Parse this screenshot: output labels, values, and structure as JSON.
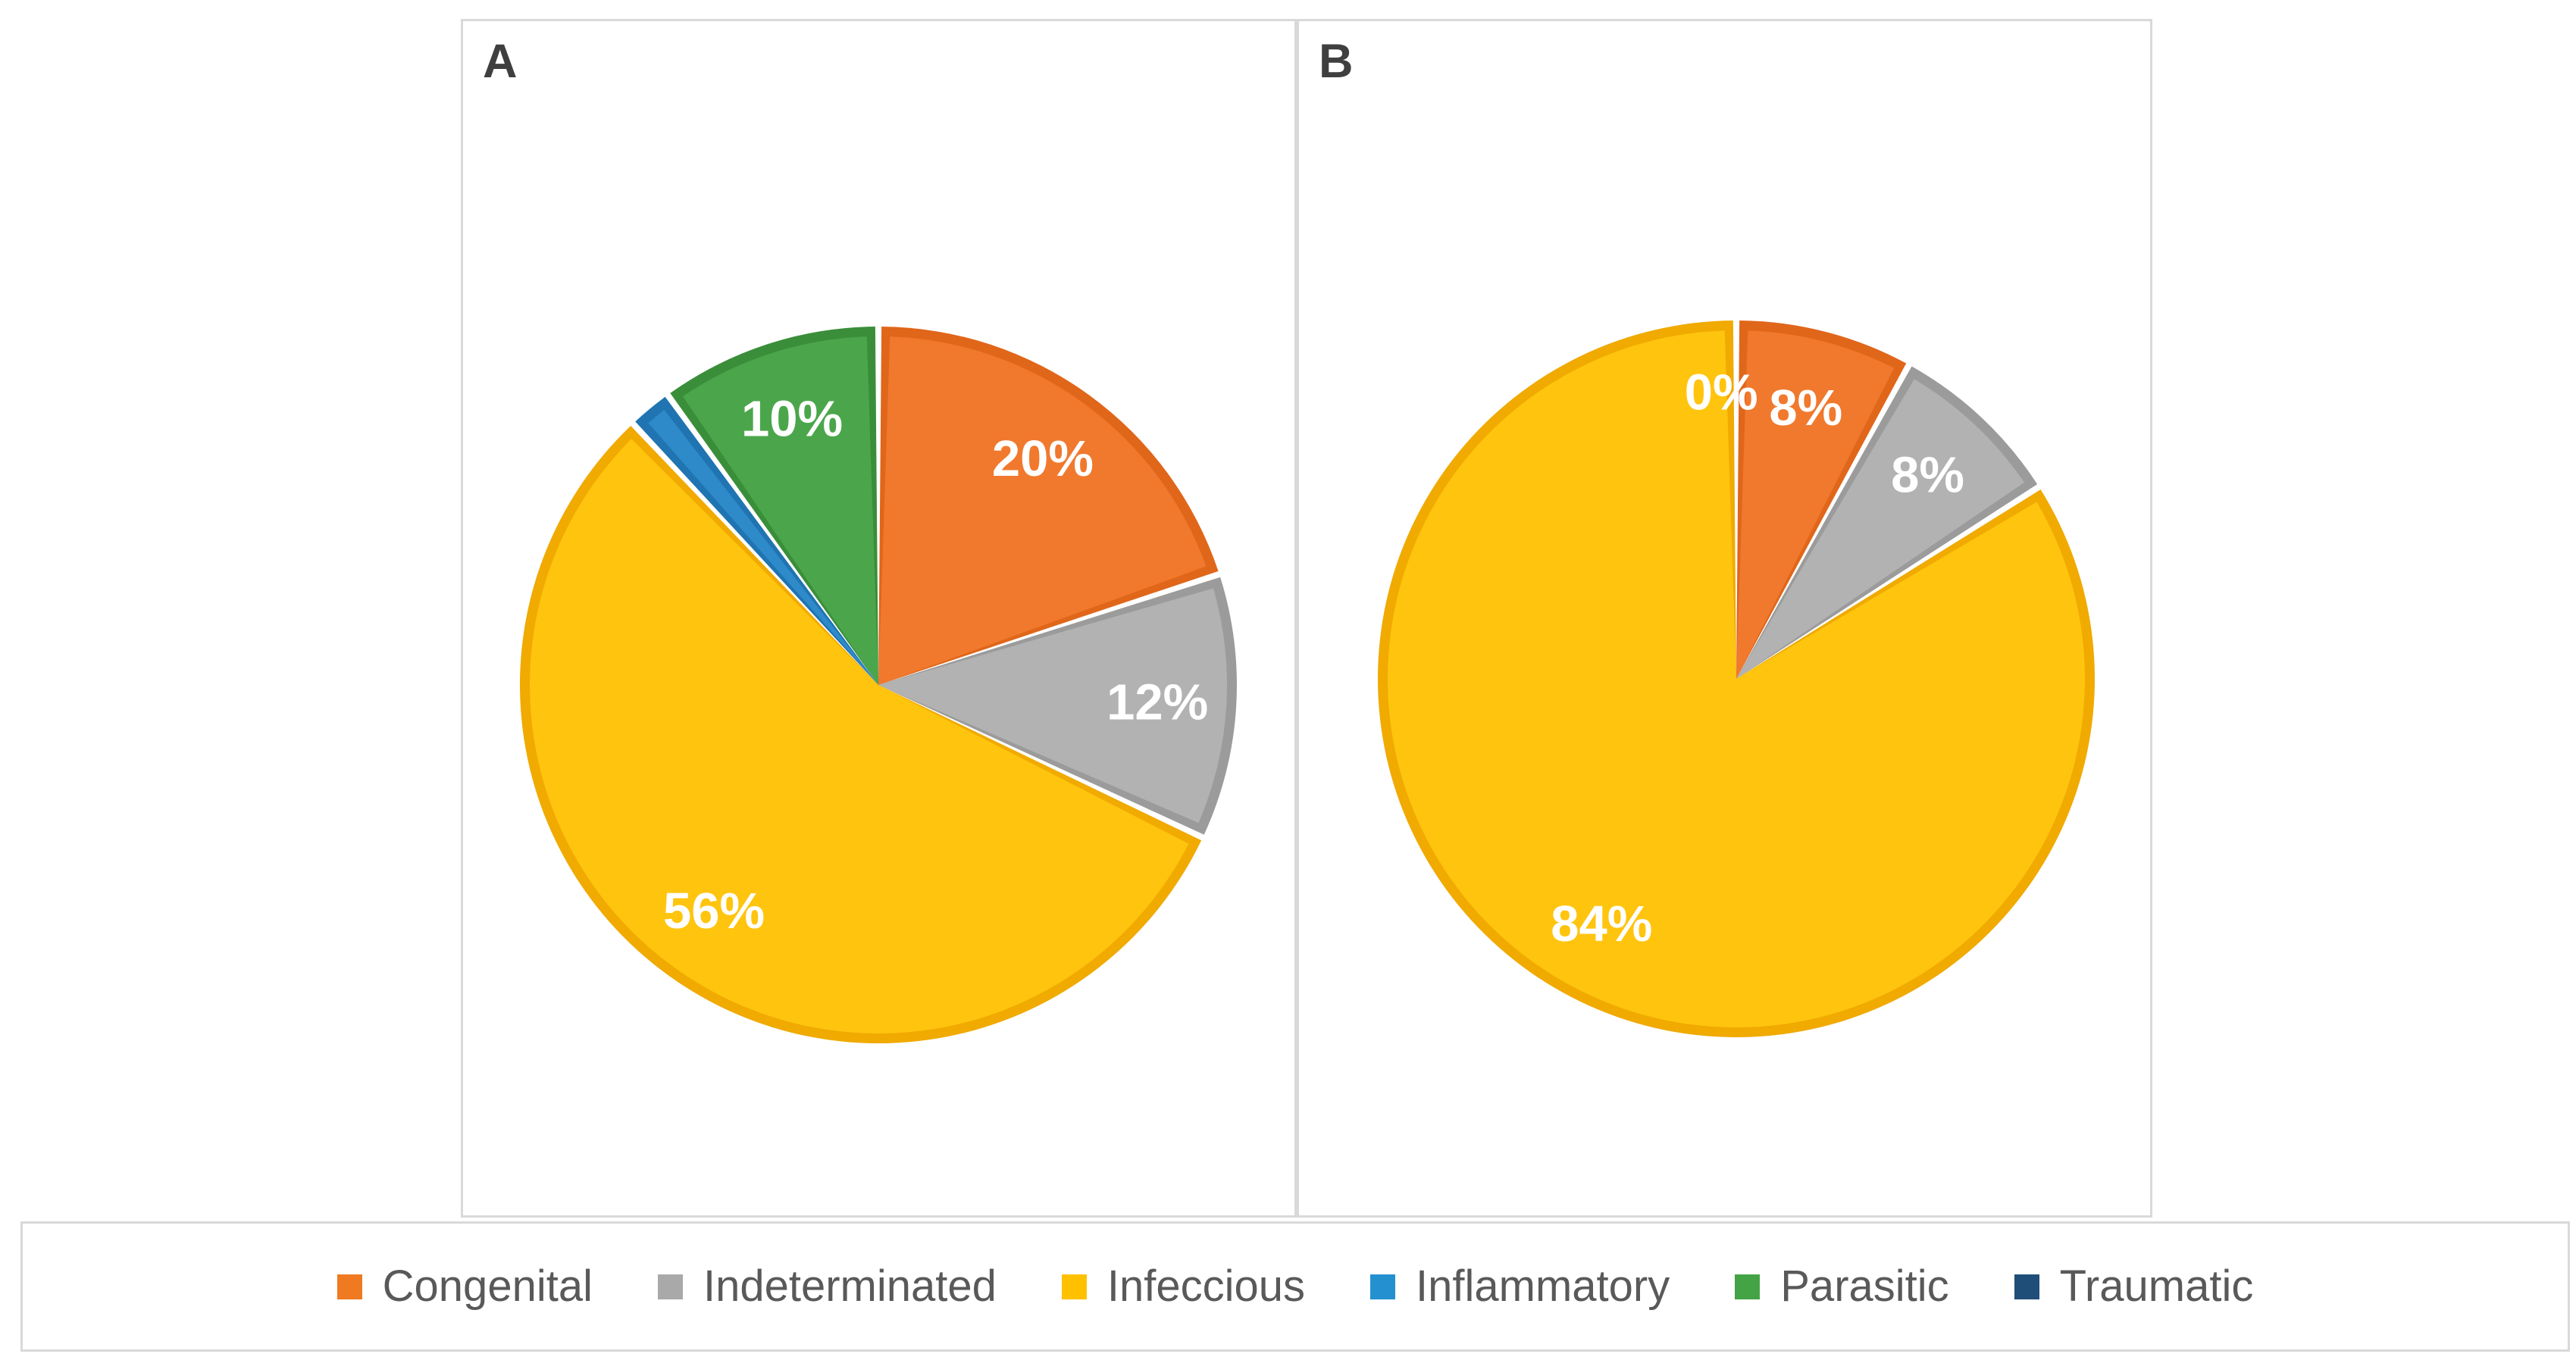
{
  "figure": {
    "panels": [
      {
        "label": "A"
      },
      {
        "label": "B"
      }
    ]
  },
  "chart_data": [
    {
      "type": "pie",
      "panel": "A",
      "start_angle_deg": 0,
      "direction": "clockwise",
      "slices": [
        {
          "category": "Congenital",
          "value_pct": 20,
          "label": "20%",
          "label_shown": true
        },
        {
          "category": "Indeterminated",
          "value_pct": 12,
          "label": "12%",
          "label_shown": true
        },
        {
          "category": "Infeccious",
          "value_pct": 56,
          "label": "56%",
          "label_shown": true
        },
        {
          "category": "Inflammatory",
          "value_pct": 2,
          "label": "",
          "label_shown": false
        },
        {
          "category": "Parasitic",
          "value_pct": 10,
          "label": "10%",
          "label_shown": true
        },
        {
          "category": "Traumatic",
          "value_pct": 0,
          "label": "",
          "label_shown": false
        }
      ],
      "floating_labels": []
    },
    {
      "type": "pie",
      "panel": "B",
      "start_angle_deg": 0,
      "direction": "clockwise",
      "slices": [
        {
          "category": "Congenital",
          "value_pct": 8,
          "label": "8%",
          "label_shown": true
        },
        {
          "category": "Indeterminated",
          "value_pct": 8,
          "label": "8%",
          "label_shown": true
        },
        {
          "category": "Infeccious",
          "value_pct": 84,
          "label": "84%",
          "label_shown": true
        },
        {
          "category": "Inflammatory",
          "value_pct": 0,
          "label": "",
          "label_shown": false
        },
        {
          "category": "Parasitic",
          "value_pct": 0,
          "label": "",
          "label_shown": false
        },
        {
          "category": "Traumatic",
          "value_pct": 0,
          "label": "",
          "label_shown": false
        }
      ],
      "floating_labels": [
        {
          "text": "0%",
          "angle_deg": 357,
          "radius_frac": 0.8
        }
      ]
    }
  ],
  "legend": {
    "items": [
      {
        "label": "Congenital",
        "color": "#F07A22"
      },
      {
        "label": "Indeterminated",
        "color": "#A9A9A9"
      },
      {
        "label": "Infeccious",
        "color": "#FFC000"
      },
      {
        "label": "Inflammatory",
        "color": "#2490D0"
      },
      {
        "label": "Parasitic",
        "color": "#44A344"
      },
      {
        "label": "Traumatic",
        "color": "#1F4E79"
      }
    ]
  },
  "colors": {
    "Congenital": {
      "fill": "#F0792E",
      "edge": "#E0661A"
    },
    "Indeterminated": {
      "fill": "#B2B2B2",
      "edge": "#9B9B9B"
    },
    "Infeccious": {
      "fill": "#FFC40E",
      "edge": "#F0AA00"
    },
    "Inflammatory": {
      "fill": "#2E8AC9",
      "edge": "#1F74B1"
    },
    "Parasitic": {
      "fill": "#4BA64B",
      "edge": "#3A8E3A"
    },
    "Traumatic": {
      "fill": "#1F4E79",
      "edge": "#17395A"
    },
    "label_text": "#FFFFFF",
    "panel_letter": "#3F3F3F",
    "legend_text": "#595959",
    "border": "#D9D9D9"
  }
}
